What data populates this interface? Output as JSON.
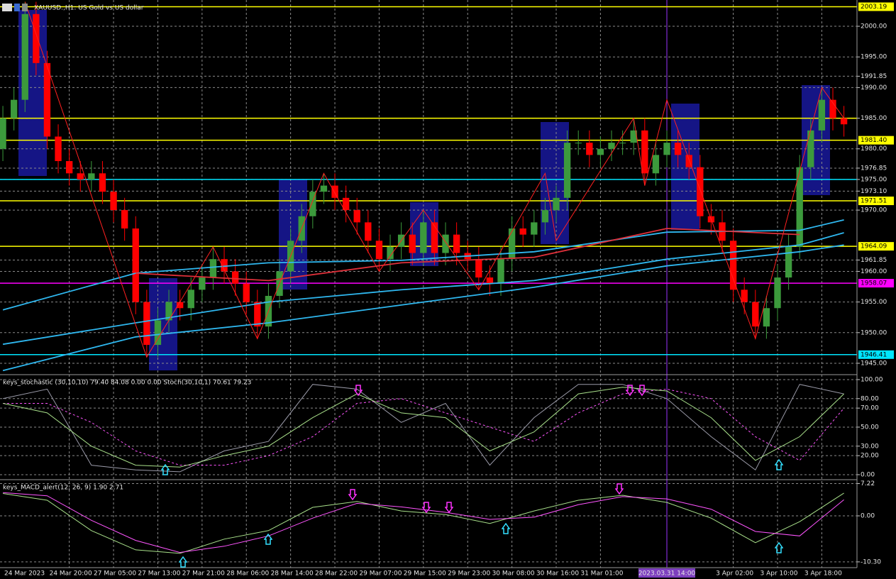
{
  "header": {
    "symbol": "XAUUSD.,H1: US Gold vs US dollar"
  },
  "chart_data": [
    {
      "type": "candlestick",
      "xlim": [
        -0.26,
        77.18
      ],
      "ylim": [
        1943.26,
        2004.29
      ],
      "grid": true,
      "up_color": "#3c9a3c",
      "down_color": "#ff0000",
      "xticks": [
        {
          "value": 0,
          "label": "24 Mar 2023"
        },
        {
          "value": 6,
          "label": "24 Mar 20:00"
        },
        {
          "value": 10,
          "label": "27 Mar 05:00"
        },
        {
          "value": 14,
          "label": "27 Mar 13:00"
        },
        {
          "value": 18,
          "label": "27 Mar 21:00"
        },
        {
          "value": 22,
          "label": "28 Mar 06:00"
        },
        {
          "value": 26,
          "label": "28 Mar 14:00"
        },
        {
          "value": 30,
          "label": "28 Mar 22:00"
        },
        {
          "value": 34,
          "label": "29 Mar 07:00"
        },
        {
          "value": 38,
          "label": "29 Mar 15:00"
        },
        {
          "value": 42,
          "label": "29 Mar 23:00"
        },
        {
          "value": 46,
          "label": "30 Mar 08:00"
        },
        {
          "value": 50,
          "label": "30 Mar 16:00"
        },
        {
          "value": 54,
          "label": "31 Mar 01:00"
        },
        {
          "value": 60,
          "label": "2023.03.31 14:00",
          "highlight": true
        },
        {
          "value": 66,
          "label": "3 Apr 02:00"
        },
        {
          "value": 70,
          "label": "3 Apr 10:00"
        },
        {
          "value": 74,
          "label": "3 Apr 18:00"
        }
      ],
      "yticks": [
        {
          "value": 2000,
          "label": "2000.00"
        },
        {
          "value": 1995,
          "label": "1995.00"
        },
        1991.85,
        {
          "value": 1990,
          "label": "1990.00"
        },
        {
          "value": 1985,
          "label": "1985.00"
        },
        {
          "value": 1980,
          "label": "1980.00"
        },
        1976.85,
        {
          "value": 1975,
          "label": "1975.00"
        },
        {
          "value": 1973.1,
          "label": "1973.10"
        },
        {
          "value": 1970,
          "label": "1970.00"
        },
        1961.85,
        {
          "value": 1960,
          "label": "1960.00"
        },
        {
          "value": 1955,
          "label": "1955.00"
        },
        {
          "value": 1950,
          "label": "1950.00"
        },
        {
          "value": 1945,
          "label": "1945.00"
        }
      ],
      "levels": [
        {
          "value": 2003.19,
          "color": "#ffff00",
          "boxed": true
        },
        {
          "value": 1985,
          "color": "#ffff00",
          "boxed": false
        },
        {
          "value": 1981.4,
          "label": "1981.40",
          "color": "#ffff00",
          "boxed": true
        },
        {
          "value": 1975,
          "color": "#00e5ff",
          "boxed": false
        },
        {
          "value": 1971.51,
          "color": "#ffff00",
          "boxed": true
        },
        {
          "value": 1964.09,
          "color": "#ffff00",
          "boxed": true
        },
        {
          "value": 1958.07,
          "color": "#ff00ff",
          "boxed": true
        },
        {
          "value": 1946.41,
          "color": "#00e5ff",
          "boxed": true
        }
      ],
      "candles": {
        "open": [
          1980,
          1985,
          1988,
          2002,
          1994,
          1982,
          1978,
          1976,
          1975,
          1976,
          1973,
          1970,
          1967,
          1955,
          1948,
          1952,
          1955,
          1954,
          1957,
          1959,
          1962,
          1960,
          1958,
          1955,
          1951,
          1956,
          1960,
          1965,
          1969,
          1973,
          1974,
          1972,
          1970,
          1968,
          1965,
          1962,
          1964,
          1966,
          1963,
          1968,
          1963,
          1966,
          1963,
          1962,
          1959,
          1958,
          1962,
          1967,
          1966,
          1968,
          1970,
          1972,
          1981,
          1981,
          1979,
          1980,
          1981,
          1981,
          1983,
          1976,
          1979,
          1981,
          1979,
          1977,
          1969,
          1968,
          1965,
          1957,
          1955,
          1951,
          1954,
          1959,
          1964,
          1977,
          1983,
          1988,
          1985
        ],
        "high": [
          1987,
          1990,
          2004,
          2004,
          1996,
          1984,
          1980,
          1978,
          1978,
          1978,
          1975,
          1972,
          1969,
          1957,
          1954,
          1957,
          1957,
          1959,
          1961,
          1964,
          1964,
          1962,
          1960,
          1957,
          1958,
          1962,
          1967,
          1971,
          1975,
          1976,
          1976,
          1974,
          1972,
          1970,
          1967,
          1966,
          1968,
          1968,
          1970,
          1970,
          1968,
          1968,
          1965,
          1964,
          1961,
          1964,
          1969,
          1969,
          1970,
          1972,
          1974,
          1983,
          1983,
          1983,
          1982,
          1983,
          1983,
          1985,
          1985,
          1981,
          1983,
          1983,
          1981,
          1979,
          1971,
          1970,
          1967,
          1959,
          1957,
          1956,
          1961,
          1966,
          1979,
          1985,
          1990,
          1990,
          1987
        ],
        "low": [
          1978,
          1983,
          1986,
          1992,
          1980,
          1976,
          1974,
          1973,
          1973,
          1971,
          1968,
          1965,
          1953,
          1946,
          1946,
          1950,
          1952,
          1952,
          1955,
          1957,
          1958,
          1956,
          1953,
          1949,
          1949,
          1954,
          1958,
          1963,
          1967,
          1971,
          1970,
          1968,
          1966,
          1963,
          1960,
          1960,
          1962,
          1961,
          1961,
          1961,
          1961,
          1961,
          1960,
          1957,
          1956,
          1956,
          1960,
          1964,
          1964,
          1966,
          1968,
          1970,
          1979,
          1977,
          1977,
          1978,
          1979,
          1979,
          1974,
          1974,
          1977,
          1977,
          1975,
          1967,
          1966,
          1963,
          1955,
          1953,
          1949,
          1949,
          1952,
          1957,
          1962,
          1975,
          1981,
          1983,
          1982
        ],
        "close": [
          1985,
          1988,
          2002,
          1994,
          1982,
          1978,
          1976,
          1975,
          1976,
          1973,
          1970,
          1967,
          1955,
          1948,
          1952,
          1955,
          1954,
          1957,
          1959,
          1962,
          1960,
          1958,
          1955,
          1951,
          1956,
          1960,
          1965,
          1969,
          1973,
          1974,
          1972,
          1970,
          1968,
          1965,
          1962,
          1964,
          1966,
          1963,
          1968,
          1963,
          1966,
          1963,
          1962,
          1959,
          1958,
          1962,
          1967,
          1966,
          1968,
          1970,
          1972,
          1981,
          1981,
          1979,
          1980,
          1981,
          1981,
          1983,
          1976,
          1979,
          1981,
          1979,
          1977,
          1969,
          1968,
          1965,
          1957,
          1955,
          1951,
          1954,
          1959,
          1964,
          1977,
          1983,
          1988,
          1985,
          1984
        ]
      },
      "ma": {
        "x": [
          0,
          12,
          24,
          36,
          48,
          60,
          72,
          76
        ],
        "series": [
          {
            "color": "#2fb8f0",
            "values": [
              1953.7,
              1959.7,
              1961.4,
              1961.8,
              1963.2,
              1966.4,
              1966.7,
              1968.4
            ]
          },
          {
            "color": "#2fb8f0",
            "values": [
              1948.1,
              1951.6,
              1955,
              1957,
              1958.5,
              1962,
              1964.3,
              1966.3
            ]
          },
          {
            "color": "#2fb8f0",
            "values": [
              1943.8,
              1949.3,
              1951.6,
              1954.5,
              1957.4,
              1960.9,
              1963.2,
              1964.3
            ]
          },
          {
            "color": "#e0303a",
            "values": [
              null,
              1959.7,
              1958.5,
              1961.4,
              1962.3,
              1967,
              1966,
              null
            ]
          }
        ]
      },
      "zigzag": {
        "color": "#ff2020",
        "x": [
          2,
          13,
          19,
          23,
          29,
          34,
          38,
          43,
          49,
          50,
          57,
          58,
          60,
          68,
          74,
          76
        ],
        "values": [
          2004,
          1946,
          1964,
          1949,
          1976,
          1960,
          1970,
          1957,
          1976,
          1965,
          1985,
          1974,
          1988,
          1949,
          1990,
          1985
        ]
      }
    },
    {
      "type": "line",
      "title": "keys_stochastic (30,10,10) 79.40 84.08 0.00 0.00 Stoch(30,10,1) 70.61 79.23",
      "xlim": [
        -0.26,
        77.18
      ],
      "ylim": [
        -4.5,
        103.7
      ],
      "grid": true,
      "yticks": [
        {
          "value": 100,
          "label": "100.00"
        },
        {
          "value": 80,
          "label": "80.00"
        },
        {
          "value": 70,
          "label": "70.00"
        },
        {
          "value": 50,
          "label": "50.00"
        },
        {
          "value": 30,
          "label": "30.00"
        },
        {
          "value": 20,
          "label": "20.00"
        },
        {
          "value": 0,
          "label": "0.00"
        }
      ],
      "x": [
        0,
        4,
        8,
        12,
        16,
        20,
        24,
        28,
        32,
        36,
        40,
        44,
        48,
        52,
        56,
        60,
        64,
        68,
        72,
        76
      ],
      "series": [
        {
          "color": "#9a9aa8",
          "dashed": false,
          "values": [
            80,
            90,
            10,
            5,
            3,
            25,
            35,
            95,
            90,
            55,
            75,
            10,
            60,
            95,
            95,
            80,
            40,
            5,
            95,
            85
          ]
        },
        {
          "color": "#ff55ff",
          "dashed": true,
          "values": [
            75,
            75,
            55,
            25,
            10,
            10,
            20,
            40,
            75,
            80,
            65,
            50,
            35,
            65,
            85,
            90,
            80,
            40,
            15,
            70
          ]
        },
        {
          "color": "#a8e08a",
          "dashed": false,
          "values": [
            75,
            65,
            30,
            10,
            8,
            20,
            30,
            60,
            85,
            65,
            60,
            25,
            45,
            85,
            92,
            88,
            60,
            15,
            40,
            85
          ]
        }
      ]
    },
    {
      "type": "line",
      "title": "keys_MACD_alert(12, 26, 9) 1.90 2.71",
      "xlim": [
        -0.26,
        77.18
      ],
      "ylim": [
        -11.59,
        7.78
      ],
      "grid": true,
      "yticks": [
        7.22,
        {
          "value": 0,
          "label": "0.00"
        },
        {
          "value": -10.3,
          "label": "-10.30"
        }
      ],
      "x": [
        0,
        4,
        8,
        12,
        16,
        20,
        24,
        28,
        32,
        36,
        40,
        44,
        48,
        52,
        56,
        60,
        64,
        68,
        72,
        76
      ],
      "series": [
        {
          "color": "#a8e08a",
          "dashed": false,
          "values": [
            5,
            3.5,
            -3.3,
            -7.6,
            -8.4,
            -5.2,
            -3.3,
            1.9,
            3.2,
            1.1,
            0.3,
            -1.7,
            1.1,
            3.5,
            4.6,
            3,
            -0.5,
            -6,
            -1.3,
            5.1
          ]
        },
        {
          "color": "#ff55ff",
          "dashed": false,
          "values": [
            5.2,
            4.5,
            -1,
            -5.5,
            -8.2,
            -6.8,
            -4.5,
            -0.5,
            2.8,
            2,
            0.8,
            -0.8,
            -0.3,
            2.5,
            4.3,
            3.8,
            1.5,
            -3.5,
            -4.5,
            3.6
          ]
        }
      ]
    }
  ]
}
